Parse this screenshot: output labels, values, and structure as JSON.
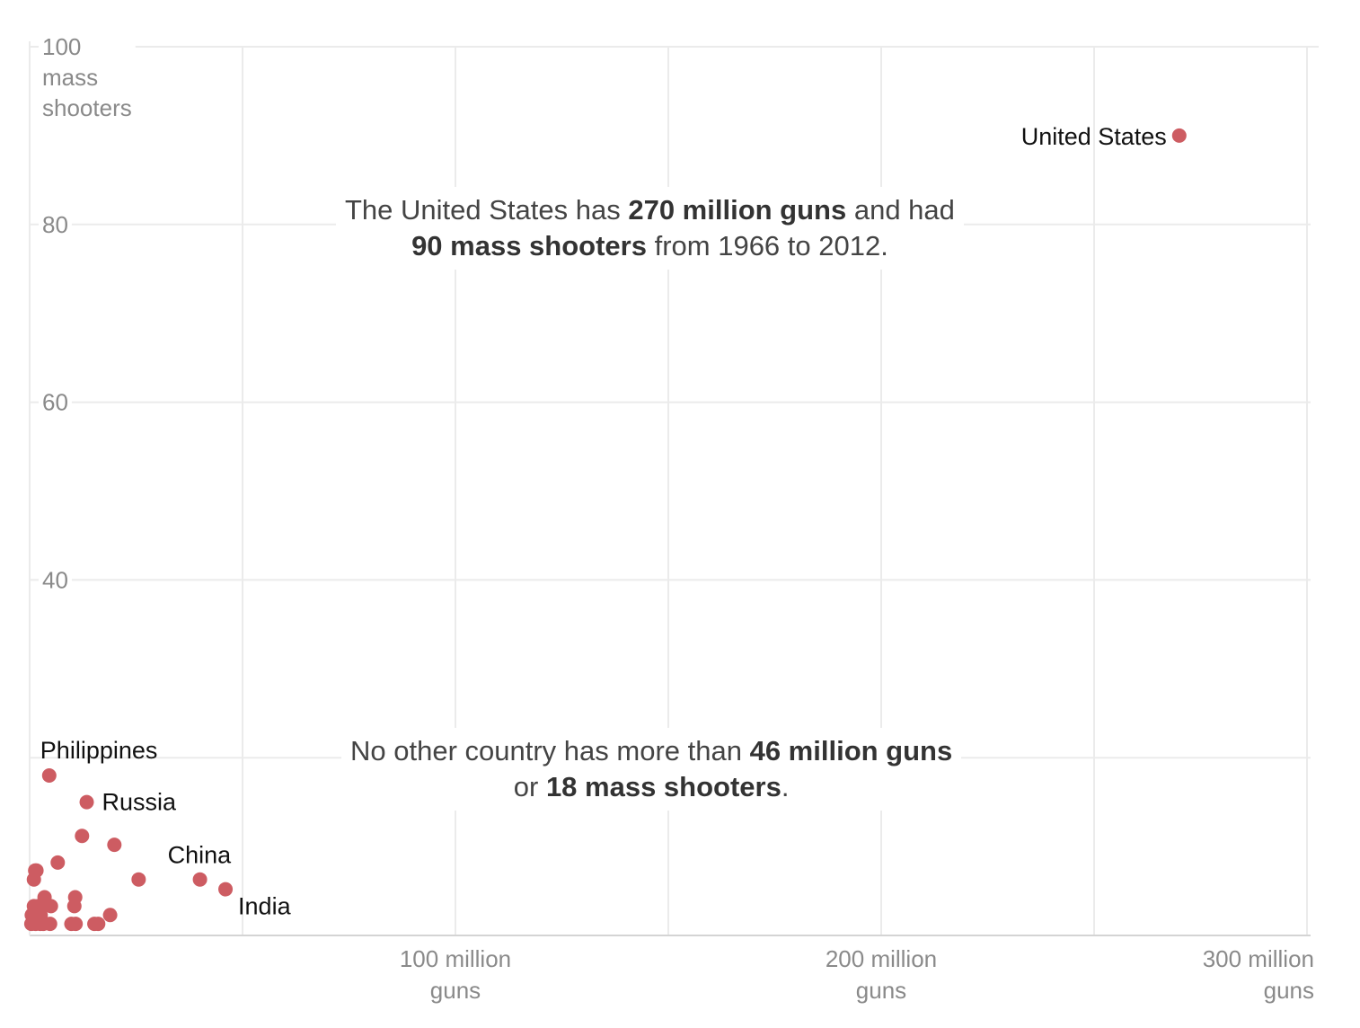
{
  "chart_data": {
    "type": "scatter",
    "title": "",
    "xlabel": "guns",
    "ylabel": "mass shooters",
    "xlim": [
      0,
      300
    ],
    "ylim": [
      0,
      100
    ],
    "x_ticks": [
      {
        "value": 100,
        "line1": "100 million",
        "line2": "guns"
      },
      {
        "value": 200,
        "line1": "200 million",
        "line2": "guns"
      },
      {
        "value": 300,
        "line1": "300 million",
        "line2": "guns"
      }
    ],
    "y_ticks": [
      {
        "value": 100,
        "line1": "100",
        "line2": "mass",
        "line3": "shooters"
      },
      {
        "value": 80,
        "line1": "80"
      },
      {
        "value": 60,
        "line1": "60"
      },
      {
        "value": 40,
        "line1": "40"
      }
    ],
    "grid": true,
    "color": "#cd5c62",
    "points": [
      {
        "x": 270,
        "y": 90,
        "label": "United States"
      },
      {
        "x": 4.6,
        "y": 18,
        "label": "Philippines"
      },
      {
        "x": 13.4,
        "y": 15,
        "label": "Russia"
      },
      {
        "x": 40,
        "y": 6.3,
        "label": "China"
      },
      {
        "x": 46,
        "y": 5.2,
        "label": "India"
      },
      {
        "x": 12.3,
        "y": 11.2
      },
      {
        "x": 19.9,
        "y": 10.2
      },
      {
        "x": 6.6,
        "y": 8.2
      },
      {
        "x": 1.3,
        "y": 7.3
      },
      {
        "x": 1.6,
        "y": 7.3
      },
      {
        "x": 1,
        "y": 6.3
      },
      {
        "x": 25.6,
        "y": 6.3
      },
      {
        "x": 3.5,
        "y": 4.3
      },
      {
        "x": 10.7,
        "y": 4.3
      },
      {
        "x": 1,
        "y": 3.3
      },
      {
        "x": 2,
        "y": 3.3
      },
      {
        "x": 5,
        "y": 3.3
      },
      {
        "x": 10.5,
        "y": 3.3
      },
      {
        "x": 18.9,
        "y": 2.3
      },
      {
        "x": 0.5,
        "y": 2.3
      },
      {
        "x": 2.6,
        "y": 2.3
      },
      {
        "x": 0.4,
        "y": 1.3
      },
      {
        "x": 1.4,
        "y": 1.3
      },
      {
        "x": 2.5,
        "y": 1.3
      },
      {
        "x": 3.2,
        "y": 1.3
      },
      {
        "x": 4.8,
        "y": 1.3
      },
      {
        "x": 9.8,
        "y": 1.3
      },
      {
        "x": 10.8,
        "y": 1.3
      },
      {
        "x": 15.2,
        "y": 1.3
      },
      {
        "x": 16.1,
        "y": 1.3
      }
    ]
  },
  "annotations": {
    "top": {
      "t1": "The United States has ",
      "b1": "270 million guns",
      "t2": " and had",
      "b2": "90 mass shooters",
      "t3": " from 1966 to 2012."
    },
    "bottom": {
      "t1": "No other country has more than ",
      "b1": "46 million guns",
      "t2": "or ",
      "b2": "18 mass shooters",
      "t3": "."
    }
  }
}
